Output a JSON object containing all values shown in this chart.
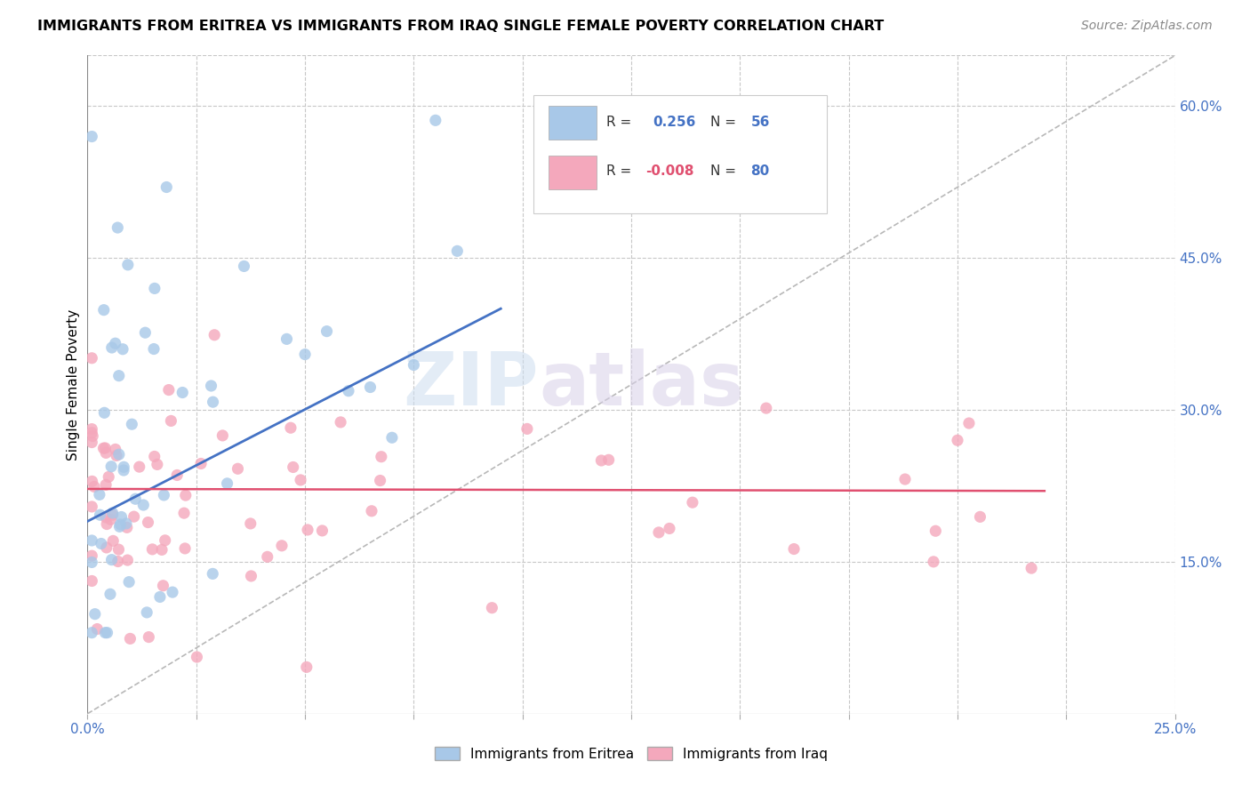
{
  "title": "IMMIGRANTS FROM ERITREA VS IMMIGRANTS FROM IRAQ SINGLE FEMALE POVERTY CORRELATION CHART",
  "source": "Source: ZipAtlas.com",
  "ylabel_label": "Single Female Poverty",
  "legend_label_eritrea": "Immigrants from Eritrea",
  "legend_label_iraq": "Immigrants from Iraq",
  "R_eritrea": 0.256,
  "N_eritrea": 56,
  "R_iraq": -0.008,
  "N_iraq": 80,
  "eritrea_color": "#a8c8e8",
  "iraq_color": "#f4a8bc",
  "eritrea_line_color": "#4472c4",
  "iraq_line_color": "#e05070",
  "diagonal_color": "#b8b8b8",
  "xlim": [
    0.0,
    0.25
  ],
  "ylim": [
    0.0,
    0.65
  ],
  "yticks": [
    0.15,
    0.3,
    0.45,
    0.6
  ],
  "ytick_labels": [
    "15.0%",
    "30.0%",
    "45.0%",
    "60.0%"
  ],
  "xtick_labels_show": [
    "0.0%",
    "25.0%"
  ],
  "watermark_zip": "ZIP",
  "watermark_atlas": "atlas"
}
